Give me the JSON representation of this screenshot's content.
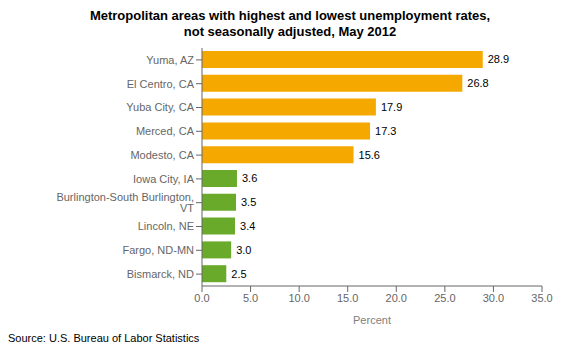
{
  "chart_data": {
    "type": "bar",
    "orientation": "horizontal",
    "title": "Metropolitan areas with highest and lowest unemployment rates,\nnot seasonally adjusted, May 2012",
    "categories": [
      "Bismarck, ND",
      "Fargo, ND-MN",
      "Lincoln, NE",
      "Burlington-South Burlington, VT",
      "Iowa City, IA",
      "Modesto, CA",
      "Merced, CA",
      "Yuba City, CA",
      "El Centro, CA",
      "Yuma, AZ"
    ],
    "values": [
      2.5,
      3.0,
      3.4,
      3.5,
      3.6,
      15.6,
      17.3,
      17.9,
      26.8,
      28.9
    ],
    "value_labels": [
      "2.5",
      "3.0",
      "3.4",
      "3.5",
      "3.6",
      "15.6",
      "17.3",
      "17.9",
      "26.8",
      "28.9"
    ],
    "data_labels": true,
    "colors": [
      "#6aaa2a",
      "#6aaa2a",
      "#6aaa2a",
      "#6aaa2a",
      "#6aaa2a",
      "#f5a800",
      "#f5a800",
      "#f5a800",
      "#f5a800",
      "#f5a800"
    ],
    "xlabel": "Percent",
    "xlim": [
      0,
      35.0
    ],
    "xticks": [
      {
        "value": 0.0,
        "label": "0.0"
      },
      {
        "value": 5.0,
        "label": "5.0"
      },
      {
        "value": 10.0,
        "label": "10.0"
      },
      {
        "value": 15.0,
        "label": "15.0"
      },
      {
        "value": 20.0,
        "label": "20.0"
      },
      {
        "value": 25.0,
        "label": "25.0"
      },
      {
        "value": 30.0,
        "label": "30.0"
      },
      {
        "value": 35.0,
        "label": "35.0"
      }
    ],
    "source": "Source: U.S. Bureau of Labor Statistics"
  }
}
